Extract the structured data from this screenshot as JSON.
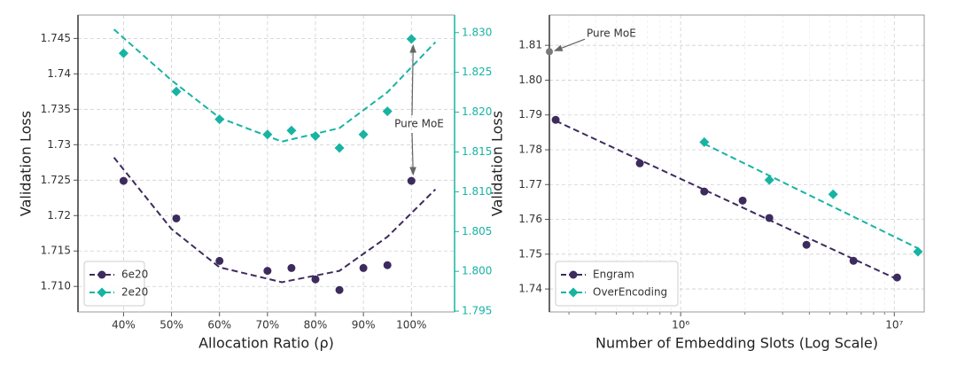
{
  "chart_data": [
    {
      "type": "scatter",
      "x_label": "Allocation Ratio (ρ)",
      "y_label": "Validation Loss",
      "xlim": [
        30.5,
        109
      ],
      "xticks": [
        {
          "value": 40,
          "label": "40%"
        },
        {
          "value": 50,
          "label": "50%"
        },
        {
          "value": 60,
          "label": "60%"
        },
        {
          "value": 70,
          "label": "70%"
        },
        {
          "value": 80,
          "label": "80%"
        },
        {
          "value": 90,
          "label": "90%"
        },
        {
          "value": 100,
          "label": "100%"
        }
      ],
      "ylim": [
        1.7064,
        1.7483
      ],
      "yticks": [
        {
          "value": 1.71,
          "label": "1.710"
        },
        1.715,
        1.72,
        1.725,
        1.73,
        1.735,
        1.74,
        1.745
      ],
      "y2lim": [
        1.7949,
        1.8322
      ],
      "y2ticks": [
        {
          "value": 1.795,
          "label": "1.795"
        },
        {
          "value": 1.8,
          "label": "1.800"
        },
        1.805,
        {
          "value": 1.81,
          "label": "1.810"
        },
        1.815,
        {
          "value": 1.82,
          "label": "1.820"
        },
        1.825,
        {
          "value": 1.83,
          "label": "1.830"
        }
      ],
      "y2color": "#17b3a3",
      "grid": true,
      "legend": "lower-left",
      "annotation": "Pure MoE",
      "series": [
        {
          "name": "6e20",
          "color": "#3d2b5e",
          "marker": "circle",
          "x": [
            40,
            51,
            60,
            70,
            75,
            80,
            85,
            90,
            95,
            100
          ],
          "values": [
            1.7249,
            1.7196,
            1.7136,
            1.7122,
            1.7126,
            1.711,
            1.7095,
            1.7126,
            1.713,
            1.7249
          ],
          "fit_x": [
            38,
            50,
            60,
            73,
            85,
            95,
            105
          ],
          "fit_values": [
            1.7282,
            1.7181,
            1.7127,
            1.7106,
            1.7122,
            1.717,
            1.7237
          ]
        },
        {
          "name": "2e20",
          "color": "#17b3a3",
          "marker": "diamond",
          "axis": "y2",
          "x": [
            40,
            51,
            60,
            70,
            75,
            80,
            85,
            90,
            95,
            100
          ],
          "values": [
            1.8274,
            1.8226,
            1.8191,
            1.8172,
            1.8177,
            1.817,
            1.8155,
            1.8172,
            1.8201,
            1.8292
          ],
          "fit_x": [
            38,
            50,
            60,
            73,
            85,
            95,
            105
          ],
          "fit_values": [
            1.8304,
            1.824,
            1.8193,
            1.8163,
            1.818,
            1.8225,
            1.8288
          ]
        }
      ]
    },
    {
      "type": "scatter",
      "xscale": "log",
      "x_label": "Number of Embedding Slots (Log Scale)",
      "y_label": "Validation Loss",
      "xlim": [
        243000,
        13800000
      ],
      "xticks": [
        {
          "value": 1000000,
          "label": "10⁶"
        },
        {
          "value": 10000000,
          "label": "10⁷"
        }
      ],
      "minor_xticks": [
        300000,
        400000,
        500000,
        600000,
        700000,
        800000,
        900000,
        2000000,
        3000000,
        4000000,
        5000000,
        6000000,
        7000000,
        8000000,
        9000000
      ],
      "ylim": [
        1.7334,
        1.8187
      ],
      "yticks": [
        {
          "value": 1.74,
          "label": "1.74"
        },
        1.75,
        1.76,
        1.77,
        1.78,
        1.79,
        {
          "value": 1.8,
          "label": "1.80"
        },
        1.81
      ],
      "grid": true,
      "legend": "lower-left",
      "reference": {
        "label": "Pure MoE",
        "x": 243000,
        "value": 1.8082,
        "color": "#7a7a7a"
      },
      "series": [
        {
          "name": "Engram",
          "color": "#3d2b5e",
          "marker": "circle",
          "x": [
            260000,
            644000,
            1290000,
            1950000,
            2600000,
            3880000,
            6440000,
            10300000
          ],
          "values": [
            1.7886,
            1.7761,
            1.768,
            1.7654,
            1.7604,
            1.7527,
            1.7481,
            1.7433
          ],
          "fit_x": [
            260000,
            10300000
          ],
          "fit_values": [
            1.7883,
            1.7428
          ]
        },
        {
          "name": "OverEncoding",
          "color": "#17b3a3",
          "marker": "diamond",
          "x": [
            1290000,
            2600000,
            5170000,
            12900000
          ],
          "values": [
            1.7822,
            1.7713,
            1.7672,
            1.7507
          ],
          "fit_x": [
            1290000,
            12900000
          ],
          "fit_values": [
            1.7817,
            1.7517
          ]
        }
      ]
    }
  ]
}
